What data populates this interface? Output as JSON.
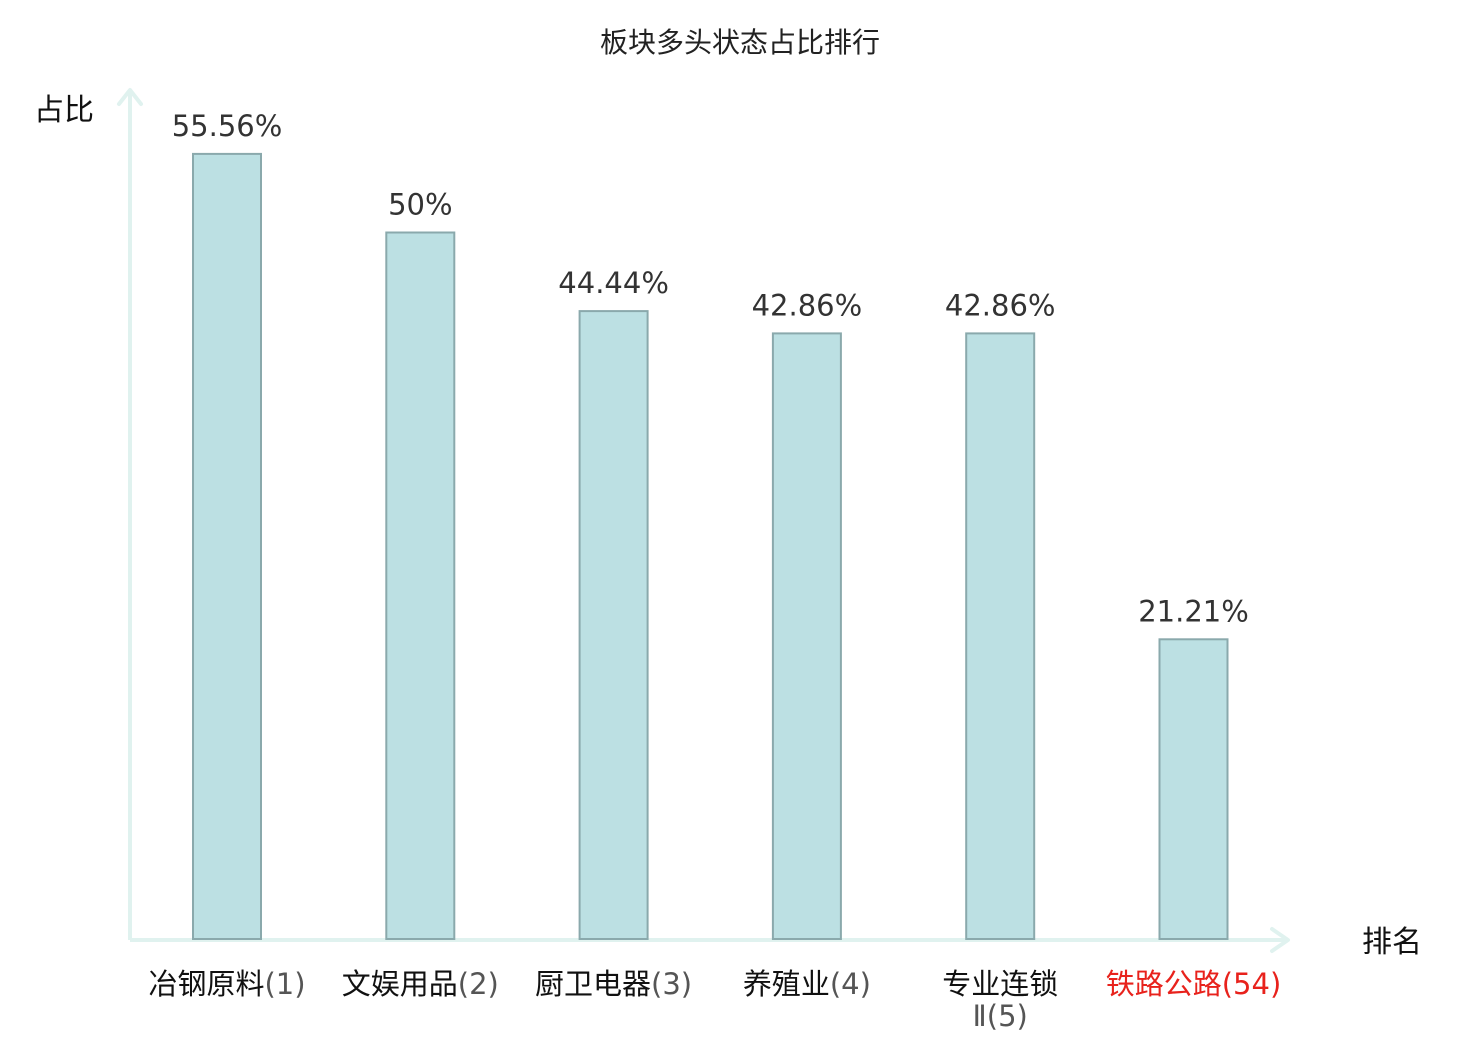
{
  "chart_data": {
    "type": "bar",
    "title": "板块多头状态占比排行",
    "xlabel": "排名",
    "ylabel": "占比",
    "ylim": [
      0,
      60
    ],
    "grid": false,
    "categories": [
      {
        "name": "冶钢原料",
        "rank": "(1)",
        "highlight": false
      },
      {
        "name": "文娱用品",
        "rank": "(2)",
        "highlight": false
      },
      {
        "name": "厨卫电器",
        "rank": "(3)",
        "highlight": false
      },
      {
        "name": "养殖业",
        "rank": "(4)",
        "highlight": false
      },
      {
        "name": "专业连锁",
        "name_line2": "Ⅱ(5)",
        "rank": "",
        "highlight": false
      },
      {
        "name": "铁路公路",
        "rank": "(54)",
        "highlight": true
      }
    ],
    "values": [
      55.56,
      50,
      44.44,
      42.86,
      42.86,
      21.21
    ],
    "value_labels": [
      "55.56%",
      "50%",
      "44.44%",
      "42.86%",
      "42.86%",
      "21.21%"
    ]
  },
  "colors": {
    "bar_fill": "#bce0e3",
    "bar_stroke": "#8aa9ac",
    "axis": "#e0f2ef",
    "text": "#333333",
    "axis_label": "#111111",
    "highlight": "#e8221c",
    "tick_text": "#222222",
    "rank_text": "#555555"
  }
}
